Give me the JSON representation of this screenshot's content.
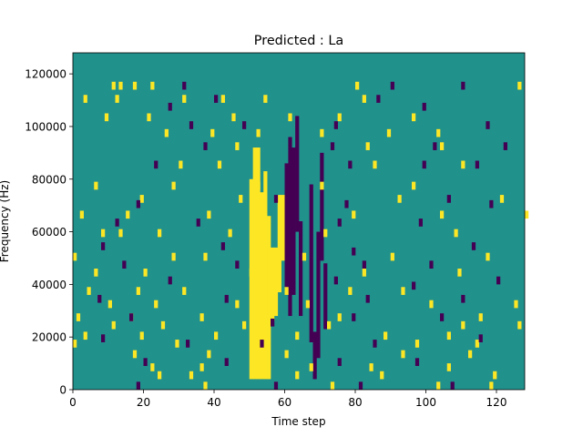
{
  "chart_data": {
    "type": "heatmap",
    "title": "Predicted : La",
    "xlabel": "Time step",
    "ylabel": "Frequency (Hz)",
    "xlim": [
      0,
      128
    ],
    "ylim": [
      0,
      128000
    ],
    "x_ticks": [
      0,
      20,
      40,
      60,
      80,
      100,
      120
    ],
    "y_ticks": [
      0,
      20000,
      40000,
      60000,
      80000,
      100000,
      120000
    ],
    "x_tick_labels": [
      "0",
      "20",
      "40",
      "60",
      "80",
      "100",
      "120"
    ],
    "y_tick_labels": [
      "0",
      "20000",
      "40000",
      "60000",
      "80000",
      "100000",
      "120000"
    ],
    "n_time_steps": 128,
    "n_freq_bins": 128,
    "freq_bin_hz": 1000,
    "colormap": {
      "low": "#440154",
      "mid": "#21918c",
      "high": "#fde725"
    },
    "background_value": 0,
    "value_meaning": {
      "-1": "low",
      "0": "mid",
      "1": "high"
    },
    "high_cells": [
      [
        11,
        114,
        117
      ],
      [
        13,
        114,
        117
      ],
      [
        17,
        114,
        117
      ],
      [
        22,
        114,
        117
      ],
      [
        80,
        114,
        117
      ],
      [
        126,
        114,
        117
      ],
      [
        3,
        109,
        112
      ],
      [
        12,
        109,
        112
      ],
      [
        31,
        109,
        112
      ],
      [
        42,
        109,
        112
      ],
      [
        54,
        109,
        112
      ],
      [
        82,
        109,
        112
      ],
      [
        9,
        102,
        105
      ],
      [
        21,
        102,
        105
      ],
      [
        45,
        102,
        105
      ],
      [
        61,
        102,
        105
      ],
      [
        75,
        102,
        105
      ],
      [
        96,
        102,
        105
      ],
      [
        26,
        96,
        99
      ],
      [
        39,
        96,
        99
      ],
      [
        52,
        96,
        99
      ],
      [
        70,
        96,
        99
      ],
      [
        89,
        96,
        99
      ],
      [
        103,
        96,
        99
      ],
      [
        46,
        91,
        94
      ],
      [
        83,
        91,
        94
      ],
      [
        104,
        91,
        94
      ],
      [
        30,
        84,
        87
      ],
      [
        41,
        84,
        87
      ],
      [
        85,
        84,
        87
      ],
      [
        110,
        84,
        87
      ],
      [
        6,
        76,
        79
      ],
      [
        28,
        76,
        79
      ],
      [
        52,
        76,
        79
      ],
      [
        70,
        76,
        79
      ],
      [
        96,
        76,
        79
      ],
      [
        19,
        71,
        74
      ],
      [
        47,
        71,
        74
      ],
      [
        92,
        71,
        74
      ],
      [
        121,
        71,
        74
      ],
      [
        2,
        65,
        68
      ],
      [
        15,
        65,
        68
      ],
      [
        38,
        65,
        68
      ],
      [
        79,
        65,
        68
      ],
      [
        104,
        65,
        68
      ],
      [
        128,
        65,
        68
      ],
      [
        8,
        58,
        61
      ],
      [
        13,
        58,
        61
      ],
      [
        24,
        58,
        61
      ],
      [
        44,
        58,
        61
      ],
      [
        71,
        58,
        61
      ],
      [
        108,
        58,
        61
      ],
      [
        0,
        49,
        52
      ],
      [
        28,
        49,
        52
      ],
      [
        37,
        49,
        52
      ],
      [
        65,
        49,
        52
      ],
      [
        90,
        49,
        52
      ],
      [
        117,
        49,
        52
      ],
      [
        6,
        43,
        46
      ],
      [
        20,
        43,
        46
      ],
      [
        50,
        43,
        46
      ],
      [
        82,
        43,
        46
      ],
      [
        109,
        43,
        46
      ],
      [
        4,
        36,
        39
      ],
      [
        18,
        36,
        39
      ],
      [
        31,
        36,
        39
      ],
      [
        60,
        36,
        39
      ],
      [
        78,
        36,
        39
      ],
      [
        93,
        36,
        39
      ],
      [
        10,
        31,
        34
      ],
      [
        23,
        31,
        34
      ],
      [
        46,
        31,
        34
      ],
      [
        66,
        31,
        34
      ],
      [
        101,
        31,
        34
      ],
      [
        125,
        31,
        34
      ],
      [
        1,
        26,
        29
      ],
      [
        16,
        26,
        29
      ],
      [
        36,
        26,
        29
      ],
      [
        56,
        26,
        29
      ],
      [
        75,
        26,
        29
      ],
      [
        115,
        26,
        29
      ],
      [
        11,
        23,
        26
      ],
      [
        25,
        23,
        26
      ],
      [
        48,
        23,
        26
      ],
      [
        72,
        23,
        26
      ],
      [
        110,
        23,
        26
      ],
      [
        126,
        23,
        26
      ],
      [
        3,
        19,
        22
      ],
      [
        19,
        19,
        22
      ],
      [
        40,
        19,
        22
      ],
      [
        63,
        19,
        22
      ],
      [
        88,
        19,
        22
      ],
      [
        106,
        19,
        22
      ],
      [
        0,
        16,
        19
      ],
      [
        29,
        16,
        19
      ],
      [
        54,
        16,
        19
      ],
      [
        97,
        16,
        19
      ],
      [
        114,
        16,
        19
      ],
      [
        17,
        12,
        15
      ],
      [
        38,
        12,
        15
      ],
      [
        60,
        12,
        15
      ],
      [
        93,
        12,
        15
      ],
      [
        112,
        12,
        15
      ],
      [
        22,
        7,
        10
      ],
      [
        36,
        7,
        10
      ],
      [
        67,
        7,
        10
      ],
      [
        84,
        7,
        10
      ],
      [
        106,
        7,
        10
      ],
      [
        24,
        4,
        7
      ],
      [
        33,
        4,
        7
      ],
      [
        63,
        4,
        7
      ],
      [
        87,
        4,
        7
      ],
      [
        119,
        4,
        7
      ],
      [
        37,
        0,
        3
      ],
      [
        73,
        0,
        3
      ],
      [
        103,
        0,
        3
      ],
      [
        118,
        0,
        3
      ]
    ],
    "high_band": [
      [
        50,
        4,
        80
      ],
      [
        51,
        4,
        92
      ],
      [
        52,
        4,
        92
      ],
      [
        53,
        4,
        75
      ],
      [
        54,
        4,
        83
      ],
      [
        55,
        4,
        66
      ],
      [
        56,
        28,
        54
      ],
      [
        57,
        28,
        54
      ],
      [
        58,
        37,
        74
      ],
      [
        59,
        49,
        74
      ]
    ],
    "low_band": [
      [
        60,
        36,
        86
      ],
      [
        61,
        28,
        96
      ],
      [
        62,
        36,
        92
      ],
      [
        63,
        60,
        104
      ],
      [
        64,
        28,
        64
      ],
      [
        67,
        18,
        78
      ],
      [
        68,
        4,
        22
      ],
      [
        69,
        12,
        60
      ],
      [
        70,
        49,
        90
      ],
      [
        71,
        23,
        48
      ]
    ],
    "low_cells": [
      [
        31,
        114,
        117
      ],
      [
        90,
        114,
        117
      ],
      [
        110,
        114,
        117
      ],
      [
        27,
        106,
        109
      ],
      [
        40,
        109,
        112
      ],
      [
        86,
        109,
        112
      ],
      [
        99,
        106,
        109
      ],
      [
        33,
        99,
        102
      ],
      [
        48,
        99,
        102
      ],
      [
        74,
        99,
        102
      ],
      [
        117,
        99,
        102
      ],
      [
        37,
        91,
        94
      ],
      [
        73,
        91,
        94
      ],
      [
        102,
        91,
        94
      ],
      [
        122,
        91,
        94
      ],
      [
        23,
        84,
        87
      ],
      [
        78,
        84,
        87
      ],
      [
        99,
        84,
        87
      ],
      [
        114,
        84,
        87
      ],
      [
        18,
        69,
        72
      ],
      [
        57,
        71,
        74
      ],
      [
        77,
        69,
        72
      ],
      [
        106,
        71,
        74
      ],
      [
        118,
        69,
        72
      ],
      [
        12,
        62,
        65
      ],
      [
        35,
        62,
        65
      ],
      [
        75,
        62,
        65
      ],
      [
        98,
        62,
        65
      ],
      [
        8,
        53,
        56
      ],
      [
        42,
        53,
        56
      ],
      [
        79,
        51,
        54
      ],
      [
        113,
        53,
        56
      ],
      [
        14,
        46,
        49
      ],
      [
        46,
        46,
        49
      ],
      [
        82,
        46,
        49
      ],
      [
        101,
        46,
        49
      ],
      [
        27,
        40,
        43
      ],
      [
        74,
        40,
        43
      ],
      [
        96,
        38,
        41
      ],
      [
        120,
        40,
        43
      ],
      [
        7,
        33,
        36
      ],
      [
        43,
        33,
        36
      ],
      [
        83,
        33,
        36
      ],
      [
        110,
        33,
        36
      ],
      [
        16,
        26,
        29
      ],
      [
        56,
        24,
        27
      ],
      [
        79,
        26,
        29
      ],
      [
        104,
        26,
        29
      ],
      [
        8,
        18,
        21
      ],
      [
        32,
        16,
        19
      ],
      [
        53,
        16,
        19
      ],
      [
        85,
        16,
        19
      ],
      [
        115,
        18,
        21
      ],
      [
        20,
        9,
        12
      ],
      [
        43,
        9,
        12
      ],
      [
        75,
        9,
        12
      ],
      [
        97,
        9,
        12
      ],
      [
        18,
        0,
        3
      ],
      [
        57,
        0,
        3
      ],
      [
        81,
        0,
        3
      ],
      [
        107,
        0,
        3
      ]
    ]
  }
}
